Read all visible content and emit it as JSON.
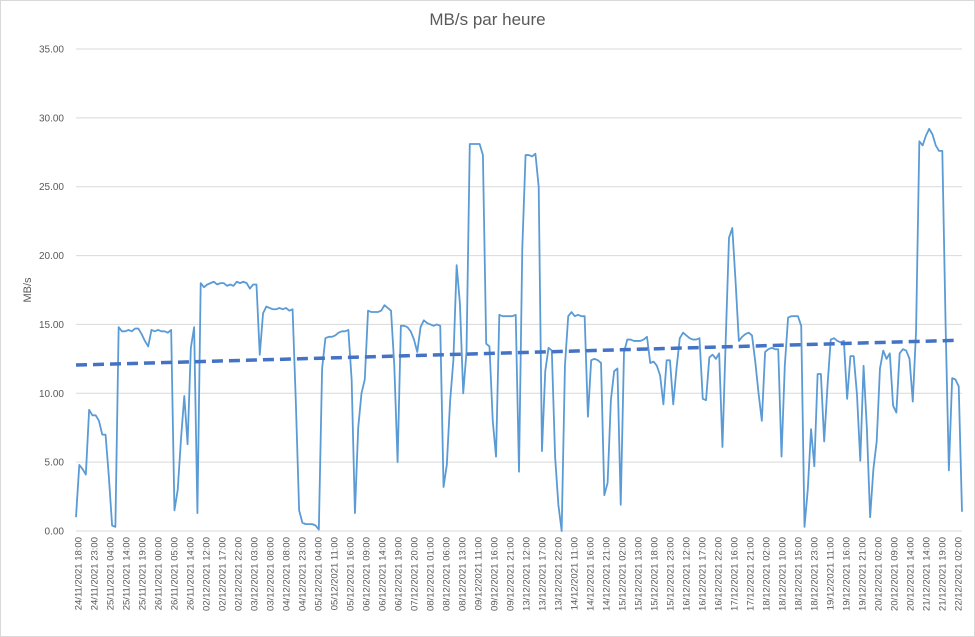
{
  "chart_data": {
    "type": "line",
    "title": "MB/s par heure",
    "xlabel": "",
    "ylabel": "MB/s",
    "ylim": [
      0,
      35
    ],
    "yticks": [
      "0.00",
      "5.00",
      "10.00",
      "15.00",
      "20.00",
      "25.00",
      "30.00",
      "35.00"
    ],
    "grid": true,
    "legend": "none",
    "colors": {
      "series": "#5b9bd5",
      "trend": "#4472c4",
      "grid": "#d9d9d9",
      "text": "#595959"
    },
    "x_tick_labels": [
      "24/11/2021 18:00",
      "24/11/2021 23:00",
      "25/11/2021 04:00",
      "25/11/2021 14:00",
      "25/11/2021 19:00",
      "26/11/2021 00:00",
      "26/11/2021 05:00",
      "26/11/2021 14:00",
      "02/12/2021 12:00",
      "02/12/2021 17:00",
      "02/12/2021 22:00",
      "03/12/2021 03:00",
      "03/12/2021 08:00",
      "04/12/2021 08:00",
      "04/12/2021 23:00",
      "05/12/2021 04:00",
      "05/12/2021 11:00",
      "05/12/2021 16:00",
      "06/12/2021 09:00",
      "06/12/2021 14:00",
      "06/12/2021 19:00",
      "07/12/2021 20:00",
      "08/12/2021 01:00",
      "08/12/2021 06:00",
      "08/12/2021 13:00",
      "09/12/2021 11:00",
      "09/12/2021 16:00",
      "09/12/2021 21:00",
      "13/12/2021 12:00",
      "13/12/2021 17:00",
      "13/12/2021 22:00",
      "14/12/2021 11:00",
      "14/12/2021 16:00",
      "14/12/2021 21:00",
      "15/12/2021 02:00",
      "15/12/2021 13:00",
      "15/12/2021 18:00",
      "15/12/2021 23:00",
      "16/12/2021 12:00",
      "16/12/2021 17:00",
      "16/12/2021 22:00",
      "17/12/2021 16:00",
      "17/12/2021 21:00",
      "18/12/2021 02:00",
      "18/12/2021 10:00",
      "18/12/2021 15:00",
      "18/12/2021 23:00",
      "19/12/2021 11:00",
      "19/12/2021 16:00",
      "19/12/2021 21:00",
      "20/12/2021 02:00",
      "20/12/2021 09:00",
      "20/12/2021 14:00",
      "21/12/2021 14:00",
      "21/12/2021 19:00",
      "22/12/2021 02:00"
    ],
    "series": [
      {
        "type": "line",
        "values": [
          1.0,
          4.8,
          4.5,
          4.1,
          8.8,
          8.4,
          8.4,
          8.0,
          7.0,
          7.0,
          4.0,
          0.4,
          0.3,
          14.8,
          14.5,
          14.5,
          14.6,
          14.5,
          14.7,
          14.7,
          14.3,
          13.8,
          13.4,
          14.6,
          14.5,
          14.6,
          14.5,
          14.5,
          14.4,
          14.6,
          1.5,
          3.0,
          6.7,
          9.8,
          6.3,
          13.3,
          14.8,
          1.3,
          18.0,
          17.7,
          17.9,
          18.0,
          18.1,
          17.9,
          18.0,
          18.0,
          17.8,
          17.9,
          17.8,
          18.1,
          18.0,
          18.1,
          18.0,
          17.6,
          17.9,
          17.9,
          12.8,
          15.8,
          16.3,
          16.2,
          16.1,
          16.1,
          16.2,
          16.1,
          16.2,
          16.0,
          16.1,
          9.3,
          1.5,
          0.6,
          0.5,
          0.5,
          0.5,
          0.4,
          0.1,
          11.8,
          14.0,
          14.1,
          14.1,
          14.2,
          14.4,
          14.5,
          14.5,
          14.6,
          11.0,
          1.3,
          7.5,
          10.0,
          11.0,
          16.0,
          15.9,
          15.9,
          15.9,
          16.0,
          16.4,
          16.2,
          16.0,
          12.0,
          5.0,
          14.9,
          14.9,
          14.8,
          14.5,
          13.9,
          13.0,
          14.8,
          15.3,
          15.1,
          15.0,
          14.9,
          15.0,
          14.9,
          3.2,
          4.8,
          9.4,
          12.4,
          19.3,
          16.5,
          10.0,
          13.0,
          28.1,
          28.1,
          28.1,
          28.1,
          27.3,
          13.6,
          13.4,
          8.0,
          5.4,
          15.7,
          15.6,
          15.6,
          15.6,
          15.6,
          15.7,
          4.3,
          20.5,
          27.3,
          27.3,
          27.2,
          27.4,
          25.0,
          5.8,
          11.6,
          13.3,
          13.1,
          5.4,
          1.9,
          0.0,
          12.0,
          15.6,
          15.9,
          15.6,
          15.7,
          15.6,
          15.6,
          8.3,
          12.4,
          12.5,
          12.4,
          12.2,
          2.6,
          3.5,
          9.5,
          11.6,
          11.8,
          1.9,
          13.0,
          13.9,
          13.9,
          13.8,
          13.8,
          13.8,
          13.9,
          14.1,
          12.2,
          12.3,
          12.0,
          11.3,
          9.2,
          12.4,
          12.4,
          9.2,
          11.8,
          14.0,
          14.4,
          14.2,
          14.0,
          13.9,
          13.9,
          14.0,
          9.6,
          9.5,
          12.6,
          12.8,
          12.5,
          12.9,
          6.1,
          13.9,
          21.3,
          22.0,
          18.1,
          13.8,
          14.1,
          14.3,
          14.4,
          14.2,
          12.3,
          10.0,
          8.0,
          13.0,
          13.2,
          13.3,
          13.2,
          13.2,
          5.4,
          12.0,
          15.5,
          15.6,
          15.6,
          15.6,
          14.9,
          0.3,
          3.0,
          7.4,
          4.7,
          11.4,
          11.4,
          6.5,
          10.5,
          13.9,
          14.0,
          13.8,
          13.7,
          13.8,
          9.6,
          12.7,
          12.7,
          9.9,
          5.1,
          12.0,
          7.5,
          1.0,
          4.5,
          6.5,
          11.8,
          13.1,
          12.5,
          12.9,
          9.1,
          8.6,
          12.9,
          13.2,
          13.1,
          12.5,
          9.4,
          14.5,
          28.3,
          28.0,
          28.7,
          29.2,
          28.8,
          28.0,
          27.6,
          27.6,
          15.0,
          4.4,
          11.1,
          11.0,
          10.5,
          1.4
        ]
      },
      {
        "type": "linear-trend",
        "values": [
          12.05,
          13.85
        ]
      }
    ]
  }
}
